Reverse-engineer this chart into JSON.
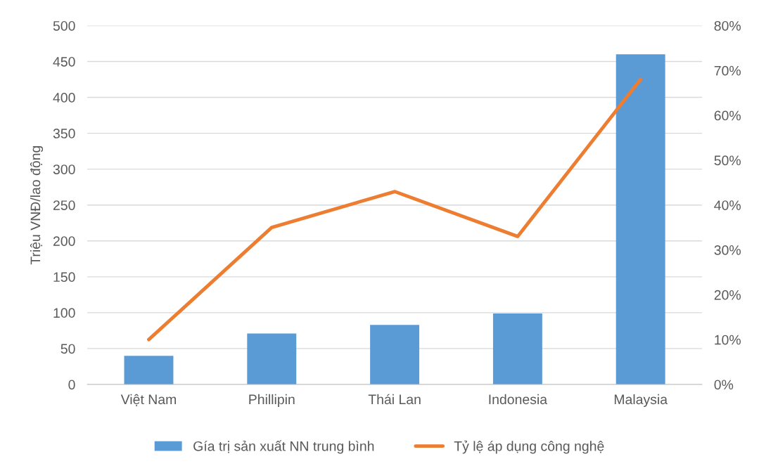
{
  "chart_data": {
    "type": "bar",
    "ylabel": "Triệu VNĐ/lao động",
    "categories": [
      "Việt Nam",
      "Phillipin",
      "Thái Lan",
      "Indonesia",
      "Malaysia"
    ],
    "series": [
      {
        "name": "Gía trị sản xuất NN trung bình",
        "color": "#5b9bd5",
        "values": [
          40,
          71,
          83,
          99,
          460
        ]
      },
      {
        "name": "Tỷ lệ áp dụng công nghệ",
        "color": "#ed7d31",
        "type": "line",
        "axis": "y2",
        "values": [
          10,
          35,
          43,
          33,
          68
        ]
      }
    ],
    "ylim": [
      0,
      500
    ],
    "yticks": [
      0,
      50,
      100,
      150,
      200,
      250,
      300,
      350,
      400,
      450,
      500
    ],
    "y2lim": [
      0,
      80
    ],
    "y2ticks": [
      {
        "value": 0,
        "label": "0%"
      },
      {
        "value": 10,
        "label": "10%"
      },
      {
        "value": 20,
        "label": "20%"
      },
      {
        "value": 30,
        "label": "30%"
      },
      {
        "value": 40,
        "label": "40%"
      },
      {
        "value": 50,
        "label": "50%"
      },
      {
        "value": 60,
        "label": "60%"
      },
      {
        "value": 70,
        "label": "70%"
      },
      {
        "value": 80,
        "label": "80%"
      }
    ],
    "grid": "y",
    "legend": "bottom"
  }
}
